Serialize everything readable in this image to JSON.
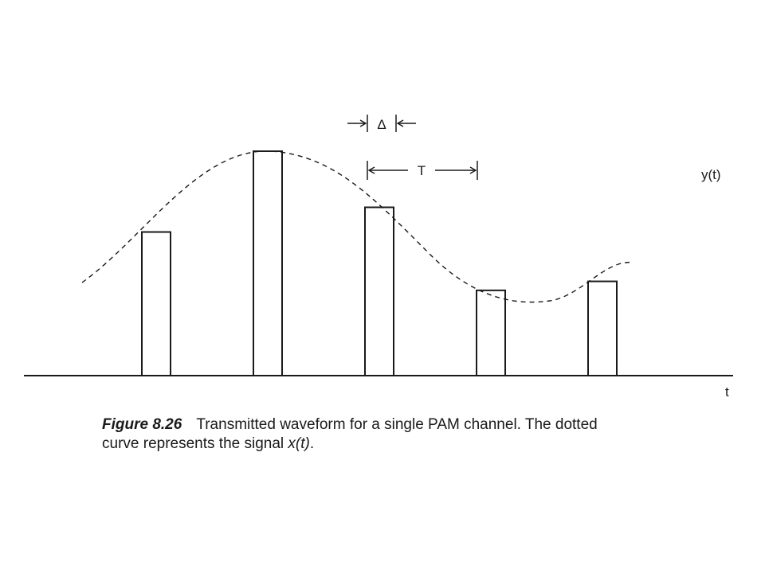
{
  "labels": {
    "delta": "Δ",
    "period": "T",
    "signal": "y(t)",
    "axis": "t"
  },
  "pulses": [
    {
      "index": 1,
      "amplitude": 0.64
    },
    {
      "index": 2,
      "amplitude": 1.0
    },
    {
      "index": 3,
      "amplitude": 0.75
    },
    {
      "index": 4,
      "amplitude": 0.38
    },
    {
      "index": 5,
      "amplitude": 0.42
    }
  ],
  "caption": {
    "figure_number": "Figure 8.26",
    "line1_text": "Transmitted waveform for a single PAM channel. The dotted",
    "line2_prefix": "curve represents the signal ",
    "line2_math": "x(t)",
    "line2_suffix": "."
  },
  "colors": {
    "ink": "#1a1a1a",
    "background": "#ffffff"
  }
}
